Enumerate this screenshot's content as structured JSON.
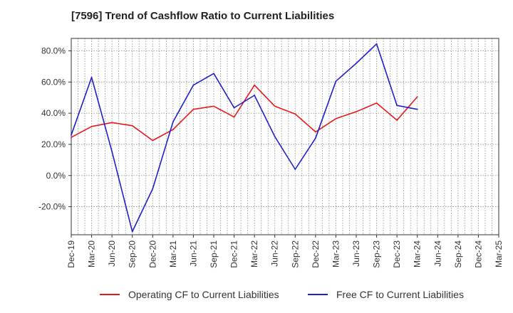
{
  "chart_data": {
    "type": "line",
    "title": "[7596]  Trend of Cashflow Ratio to Current Liabilities",
    "xlabel": "",
    "ylabel": "",
    "ylim": [
      -38,
      88
    ],
    "y_ticks": [
      "80.0%",
      "60.0%",
      "40.0%",
      "20.0%",
      "0.0%",
      "-20.0%"
    ],
    "y_tick_values": [
      80,
      60,
      40,
      20,
      0,
      -20
    ],
    "x_ticks": [
      "Dec-19",
      "Mar-20",
      "Jun-20",
      "Sep-20",
      "Dec-20",
      "Mar-21",
      "Jun-21",
      "Sep-21",
      "Dec-21",
      "Mar-22",
      "Jun-22",
      "Sep-22",
      "Dec-22",
      "Mar-23",
      "Jun-23",
      "Sep-23",
      "Dec-23",
      "Mar-24",
      "Jun-24",
      "Sep-24",
      "Dec-24",
      "Mar-25"
    ],
    "grid": true,
    "legend_position": "bottom",
    "series": [
      {
        "name": "Operating CF to Current Liabilities",
        "color": "#e31a1c",
        "values": [
          24.5,
          31.5,
          34,
          32,
          22.5,
          29.5,
          42.5,
          44.5,
          37.5,
          58,
          44.5,
          39.5,
          28,
          36.5,
          41,
          46.5,
          35.5,
          50.5
        ]
      },
      {
        "name": "Free CF to Current Liabilities",
        "color": "#1f1fcc",
        "values": [
          26,
          63,
          15.5,
          -36,
          -8.5,
          34.5,
          58,
          65.5,
          43.5,
          51.5,
          25,
          4,
          24,
          60.5,
          72,
          84.5,
          45,
          42.5
        ]
      }
    ]
  }
}
